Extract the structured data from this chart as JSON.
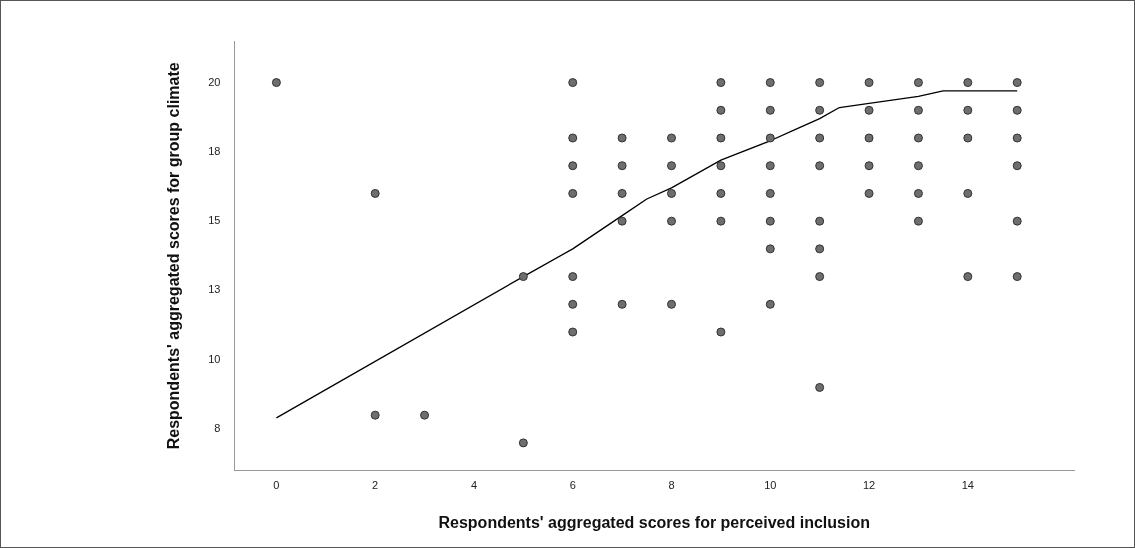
{
  "chart_data": {
    "type": "scatter",
    "xlabel": "Respondents' aggregated scores for perceived inclusion",
    "ylabel": "Respondents' aggregated scores for group climate",
    "xlim": [
      -0.85,
      16.15
    ],
    "xticks": [
      0,
      2,
      4,
      6,
      8,
      10,
      12,
      14
    ],
    "ylim": [
      6,
      21.5
    ],
    "yticks": [
      {
        "value": 7.5,
        "label": "8"
      },
      10,
      {
        "value": 12.5,
        "label": "13"
      },
      15,
      {
        "value": 17.5,
        "label": "18"
      },
      20
    ],
    "grid": false,
    "legend": false,
    "series": [
      {
        "type": "scatter",
        "marker": "circle",
        "color": "#6e6e6e",
        "x": [
          0,
          2,
          2,
          3,
          5,
          5,
          6,
          6,
          6,
          6,
          6,
          6,
          6,
          7,
          7,
          7,
          7,
          7,
          8,
          8,
          8,
          8,
          8,
          9,
          9,
          9,
          9,
          9,
          9,
          9,
          10,
          10,
          10,
          10,
          10,
          10,
          10,
          10,
          11,
          11,
          11,
          11,
          11,
          11,
          11,
          11,
          12,
          12,
          12,
          12,
          12,
          13,
          13,
          13,
          13,
          13,
          13,
          14,
          14,
          14,
          14,
          14,
          15,
          15,
          15,
          15,
          15,
          15
        ],
        "values": [
          20,
          16,
          8,
          8,
          13,
          7,
          20,
          18,
          17,
          16,
          13,
          12,
          11,
          18,
          17,
          16,
          15,
          12,
          18,
          17,
          16,
          15,
          12,
          20,
          19,
          18,
          17,
          16,
          15,
          11,
          20,
          19,
          18,
          17,
          16,
          15,
          14,
          12,
          20,
          19,
          18,
          17,
          15,
          14,
          13,
          9,
          20,
          19,
          18,
          17,
          16,
          20,
          19,
          18,
          17,
          16,
          15,
          20,
          19,
          18,
          16,
          13,
          20,
          19,
          18,
          17,
          15,
          13
        ]
      },
      {
        "type": "line",
        "marker": "none",
        "color": "#000000",
        "x": [
          0,
          5,
          6,
          7,
          7.5,
          8,
          9,
          10,
          10.5,
          11,
          11.4,
          12,
          13,
          13.5,
          14,
          15
        ],
        "values": [
          7.9,
          13,
          14,
          15.2,
          15.8,
          16.2,
          17.2,
          17.9,
          18.3,
          18.7,
          19.1,
          19.25,
          19.5,
          19.7,
          19.7,
          19.7
        ]
      }
    ]
  }
}
